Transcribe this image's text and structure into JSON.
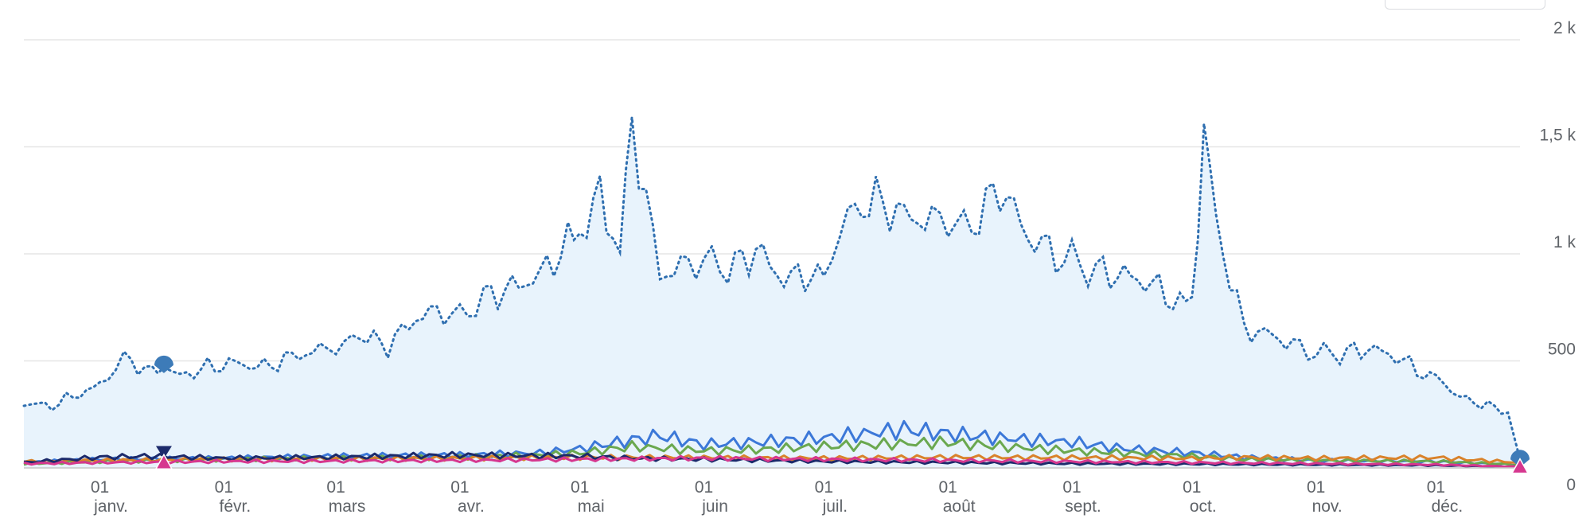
{
  "chart_data": {
    "type": "line",
    "title": "",
    "xlabel": "",
    "ylabel": "",
    "ylim": [
      0,
      2000
    ],
    "y_ticks": [
      {
        "value": 0,
        "label": "0"
      },
      {
        "value": 500,
        "label": "500"
      },
      {
        "value": 1000,
        "label": "1 k"
      },
      {
        "value": 1500,
        "label": "1,5 k"
      },
      {
        "value": 2000,
        "label": "2 k"
      }
    ],
    "x_ticks": [
      {
        "day": 1,
        "month": "janv."
      },
      {
        "day": 1,
        "month": "févr."
      },
      {
        "day": 1,
        "month": "mars"
      },
      {
        "day": 1,
        "month": "avr."
      },
      {
        "day": 1,
        "month": "mai"
      },
      {
        "day": 1,
        "month": "juin"
      },
      {
        "day": 1,
        "month": "juil."
      },
      {
        "day": 1,
        "month": "août"
      },
      {
        "day": 1,
        "month": "sept."
      },
      {
        "day": 1,
        "month": "oct."
      },
      {
        "day": 1,
        "month": "nov."
      },
      {
        "day": 1,
        "month": "déc."
      }
    ],
    "grid": true,
    "legend": "none",
    "series": [
      {
        "style": "dotted-area",
        "color": "#2f6fb0",
        "fill": "#e8f3fc",
        "points": [
          [
            "12-13",
            300
          ],
          [
            "12-20",
            290
          ],
          [
            "12-27",
            350
          ],
          [
            "01-01",
            380
          ],
          [
            "01-07",
            520
          ],
          [
            "01-14",
            440
          ],
          [
            "01-17",
            480
          ],
          [
            "01-21",
            430
          ],
          [
            "01-28",
            470
          ],
          [
            "02-04",
            490
          ],
          [
            "02-11",
            470
          ],
          [
            "02-18",
            520
          ],
          [
            "02-25",
            550
          ],
          [
            "03-01",
            560
          ],
          [
            "03-07",
            620
          ],
          [
            "03-14",
            570
          ],
          [
            "03-21",
            700
          ],
          [
            "03-28",
            740
          ],
          [
            "04-01",
            700
          ],
          [
            "04-07",
            800
          ],
          [
            "04-14",
            840
          ],
          [
            "04-21",
            900
          ],
          [
            "04-28",
            1050
          ],
          [
            "05-01",
            1100
          ],
          [
            "05-06",
            1270
          ],
          [
            "05-11",
            1000
          ],
          [
            "05-14",
            1620
          ],
          [
            "05-21",
            900
          ],
          [
            "05-28",
            950
          ],
          [
            "06-01",
            980
          ],
          [
            "06-07",
            920
          ],
          [
            "06-14",
            1020
          ],
          [
            "06-21",
            880
          ],
          [
            "06-28",
            910
          ],
          [
            "07-01",
            880
          ],
          [
            "07-07",
            1190
          ],
          [
            "07-14",
            1250
          ],
          [
            "07-21",
            1180
          ],
          [
            "07-28",
            1150
          ],
          [
            "08-01",
            1160
          ],
          [
            "08-07",
            1120
          ],
          [
            "08-14",
            1320
          ],
          [
            "08-21",
            1080
          ],
          [
            "08-28",
            1000
          ],
          [
            "09-01",
            970
          ],
          [
            "09-07",
            920
          ],
          [
            "09-14",
            900
          ],
          [
            "09-21",
            860
          ],
          [
            "09-28",
            760
          ],
          [
            "10-01",
            780
          ],
          [
            "10-04",
            1580
          ],
          [
            "10-07",
            1140
          ],
          [
            "10-14",
            650
          ],
          [
            "10-21",
            620
          ],
          [
            "10-28",
            560
          ],
          [
            "11-01",
            540
          ],
          [
            "11-07",
            530
          ],
          [
            "11-14",
            560
          ],
          [
            "11-21",
            520
          ],
          [
            "11-28",
            440
          ],
          [
            "12-01",
            420
          ],
          [
            "12-07",
            330
          ],
          [
            "12-14",
            290
          ],
          [
            "12-19",
            260
          ],
          [
            "12-22",
            40
          ]
        ]
      },
      {
        "style": "solid",
        "color": "#3c78d8",
        "points": [
          [
            "12-13",
            25
          ],
          [
            "01-01",
            40
          ],
          [
            "02-01",
            45
          ],
          [
            "03-01",
            55
          ],
          [
            "04-01",
            60
          ],
          [
            "04-21",
            70
          ],
          [
            "05-01",
            90
          ],
          [
            "05-14",
            130
          ],
          [
            "05-21",
            150
          ],
          [
            "06-01",
            110
          ],
          [
            "06-14",
            120
          ],
          [
            "07-01",
            140
          ],
          [
            "07-11",
            160
          ],
          [
            "07-21",
            180
          ],
          [
            "08-01",
            160
          ],
          [
            "08-14",
            140
          ],
          [
            "09-01",
            120
          ],
          [
            "09-14",
            90
          ],
          [
            "10-01",
            70
          ],
          [
            "10-14",
            50
          ],
          [
            "11-01",
            35
          ],
          [
            "12-01",
            30
          ],
          [
            "12-22",
            15
          ]
        ]
      },
      {
        "style": "solid",
        "color": "#6aa84f",
        "points": [
          [
            "12-13",
            20
          ],
          [
            "01-01",
            30
          ],
          [
            "02-01",
            40
          ],
          [
            "03-01",
            45
          ],
          [
            "04-01",
            50
          ],
          [
            "04-21",
            60
          ],
          [
            "05-01",
            70
          ],
          [
            "05-14",
            100
          ],
          [
            "06-01",
            80
          ],
          [
            "06-14",
            85
          ],
          [
            "07-01",
            100
          ],
          [
            "07-14",
            110
          ],
          [
            "08-01",
            120
          ],
          [
            "08-14",
            100
          ],
          [
            "09-01",
            80
          ],
          [
            "09-14",
            70
          ],
          [
            "10-01",
            55
          ],
          [
            "10-14",
            40
          ],
          [
            "11-01",
            35
          ],
          [
            "12-01",
            30
          ],
          [
            "12-22",
            15
          ]
        ]
      },
      {
        "style": "solid",
        "color": "#d9822b",
        "points": [
          [
            "12-13",
            30
          ],
          [
            "01-01",
            35
          ],
          [
            "02-01",
            40
          ],
          [
            "03-01",
            42
          ],
          [
            "04-01",
            45
          ],
          [
            "05-01",
            50
          ],
          [
            "06-01",
            48
          ],
          [
            "07-01",
            45
          ],
          [
            "08-01",
            50
          ],
          [
            "09-01",
            48
          ],
          [
            "10-01",
            45
          ],
          [
            "10-14",
            50
          ],
          [
            "11-01",
            45
          ],
          [
            "12-01",
            48
          ],
          [
            "12-22",
            25
          ]
        ]
      },
      {
        "style": "solid",
        "color": "#1c2a6b",
        "points": [
          [
            "12-13",
            25
          ],
          [
            "01-01",
            50
          ],
          [
            "01-14",
            55
          ],
          [
            "02-01",
            45
          ],
          [
            "03-01",
            50
          ],
          [
            "04-01",
            60
          ],
          [
            "05-01",
            55
          ],
          [
            "05-14",
            45
          ],
          [
            "06-01",
            40
          ],
          [
            "07-01",
            30
          ],
          [
            "08-01",
            25
          ],
          [
            "09-01",
            20
          ],
          [
            "10-01",
            18
          ],
          [
            "11-01",
            15
          ],
          [
            "12-01",
            12
          ],
          [
            "12-22",
            5
          ]
        ]
      },
      {
        "style": "solid",
        "color": "#d6378f",
        "points": [
          [
            "12-13",
            20
          ],
          [
            "01-01",
            25
          ],
          [
            "02-01",
            30
          ],
          [
            "03-01",
            32
          ],
          [
            "04-01",
            35
          ],
          [
            "05-01",
            40
          ],
          [
            "06-01",
            45
          ],
          [
            "07-01",
            40
          ],
          [
            "08-01",
            35
          ],
          [
            "09-01",
            30
          ],
          [
            "10-01",
            25
          ],
          [
            "11-01",
            20
          ],
          [
            "12-01",
            15
          ],
          [
            "12-22",
            5
          ]
        ]
      }
    ],
    "markers": [
      {
        "shape": "round-pin",
        "color": "#3d7bb8",
        "date": "01-17",
        "value": 480
      },
      {
        "shape": "triangle-down",
        "color": "#1c2a6b",
        "date": "01-17",
        "value": 65
      },
      {
        "shape": "triangle-up",
        "color": "#d6378f",
        "date": "01-17",
        "value": 25
      },
      {
        "shape": "round-pin",
        "color": "#3d7bb8",
        "date": "12-22",
        "value": 40
      },
      {
        "shape": "triangle-up",
        "color": "#d6378f",
        "date": "12-22",
        "value": 5
      }
    ]
  }
}
